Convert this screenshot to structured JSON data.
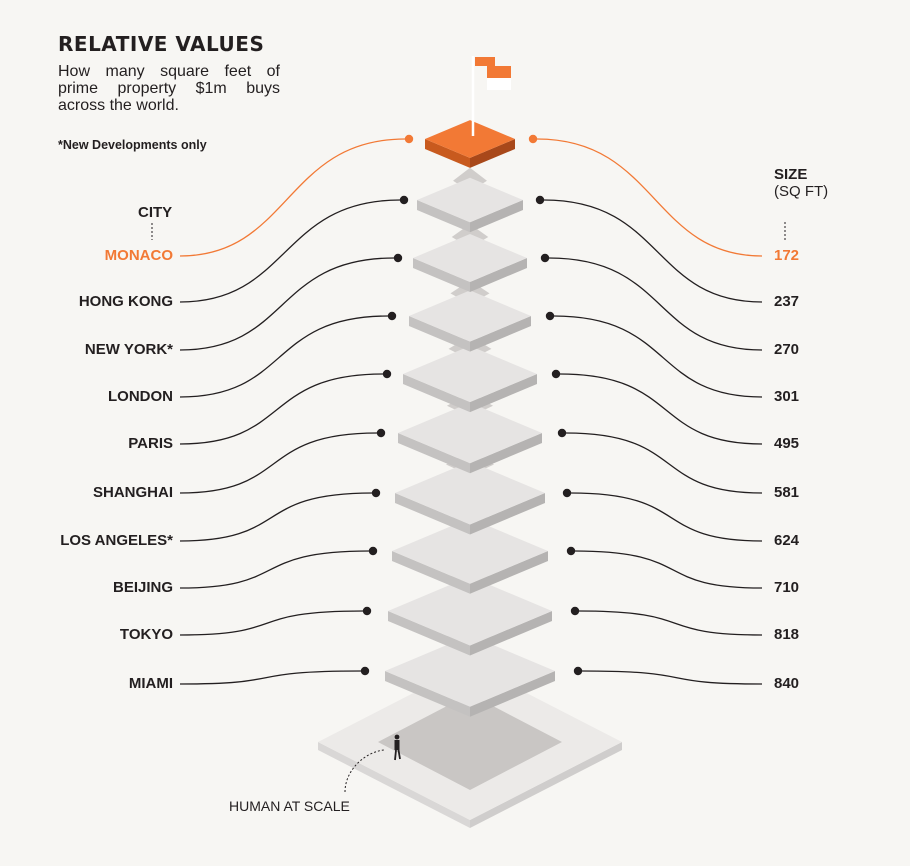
{
  "header": {
    "title": "RELATIVE VALUES",
    "subtitle": "How many square feet of prime property $1m buys across the world.",
    "note": "*New Developments only"
  },
  "columns": {
    "city_label": "CITY",
    "size_label_1": "SIZE",
    "size_label_2": "(SQ FT)"
  },
  "rows": [
    {
      "city": "MONACO",
      "size": "172",
      "highlight": true
    },
    {
      "city": "HONG KONG",
      "size": "237"
    },
    {
      "city": "NEW YORK*",
      "size": "270"
    },
    {
      "city": "LONDON",
      "size": "301"
    },
    {
      "city": "PARIS",
      "size": "495"
    },
    {
      "city": "SHANGHAI",
      "size": "581"
    },
    {
      "city": "LOS ANGELES*",
      "size": "624"
    },
    {
      "city": "BEIJING",
      "size": "710"
    },
    {
      "city": "TOKYO",
      "size": "818"
    },
    {
      "city": "MIAMI",
      "size": "840"
    }
  ],
  "human_label": "HUMAN AT SCALE",
  "colors": {
    "accent": "#f27935",
    "accent_dark": "#c85a1e",
    "ink": "#231f20",
    "background": "#f7f6f3",
    "plate_top": "#e6e4e3",
    "plate_side": "#c4c2c1",
    "plate_shadow": "#d0cdcb"
  }
}
